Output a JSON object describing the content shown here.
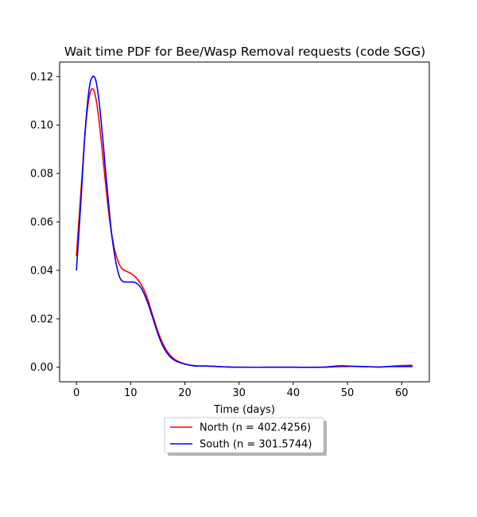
{
  "chart_data": {
    "type": "line",
    "title": "Wait time PDF for Bee/Wasp Removal  requests (code SGG)",
    "xlabel": "Time (days)",
    "ylabel": "",
    "xlim": [
      -3.1,
      65.1
    ],
    "ylim": [
      -0.006,
      0.126
    ],
    "xticks": [
      0,
      10,
      20,
      30,
      40,
      50,
      60
    ],
    "xtick_labels": [
      "0",
      "10",
      "20",
      "30",
      "40",
      "50",
      "60"
    ],
    "yticks": [
      0.0,
      0.02,
      0.04,
      0.06,
      0.08,
      0.1,
      0.12
    ],
    "ytick_labels": [
      "0.00",
      "0.02",
      "0.04",
      "0.06",
      "0.08",
      "0.10",
      "0.12"
    ],
    "grid": false,
    "legend_position": "below",
    "series": [
      {
        "name": "North (n = 402.4256)",
        "color": "#ff0000",
        "x": [
          0,
          0.5,
          1,
          1.5,
          2,
          2.5,
          3,
          3.5,
          4,
          4.5,
          5,
          5.5,
          6,
          6.5,
          7,
          7.5,
          8,
          8.5,
          9,
          10,
          11,
          12,
          13,
          14,
          15,
          16,
          17,
          18,
          19,
          20,
          21,
          22,
          24,
          26,
          28,
          30,
          35,
          40,
          45,
          48,
          49,
          50,
          52,
          54,
          56,
          58,
          60,
          62
        ],
        "y": [
          0.046,
          0.062,
          0.078,
          0.094,
          0.106,
          0.113,
          0.115,
          0.112,
          0.105,
          0.095,
          0.084,
          0.073,
          0.063,
          0.055,
          0.049,
          0.045,
          0.042,
          0.0405,
          0.0398,
          0.0388,
          0.037,
          0.034,
          0.029,
          0.022,
          0.015,
          0.0095,
          0.0058,
          0.0035,
          0.0022,
          0.0014,
          0.0009,
          0.0006,
          0.0005,
          0.0003,
          0.0001,
          0.0,
          0.0,
          0.0,
          0.0,
          0.0002,
          0.0003,
          0.0003,
          0.0004,
          0.0002,
          0.0001,
          0.0004,
          0.0007,
          0.0008
        ]
      },
      {
        "name": "South (n = 301.5744)",
        "color": "#0000ff",
        "x": [
          0,
          0.5,
          1,
          1.5,
          2,
          2.5,
          3,
          3.5,
          4,
          4.5,
          5,
          5.5,
          6,
          6.5,
          7,
          7.5,
          8,
          8.5,
          9,
          10,
          11,
          12,
          13,
          14,
          15,
          16,
          17,
          18,
          19,
          20,
          21,
          22,
          24,
          26,
          28,
          30,
          35,
          40,
          45,
          48,
          49,
          50,
          52,
          54,
          56,
          58,
          60,
          62
        ],
        "y": [
          0.04,
          0.057,
          0.075,
          0.094,
          0.108,
          0.117,
          0.12,
          0.119,
          0.113,
          0.103,
          0.091,
          0.078,
          0.066,
          0.055,
          0.047,
          0.041,
          0.037,
          0.0355,
          0.0352,
          0.0352,
          0.0348,
          0.0325,
          0.0275,
          0.021,
          0.014,
          0.0085,
          0.005,
          0.003,
          0.002,
          0.0013,
          0.0008,
          0.0005,
          0.0005,
          0.0003,
          0.0001,
          0.0,
          0.0,
          0.0,
          0.0,
          0.0005,
          0.0006,
          0.0005,
          0.0003,
          0.0002,
          0.0001,
          0.0003,
          0.0003,
          0.0003
        ]
      }
    ]
  }
}
